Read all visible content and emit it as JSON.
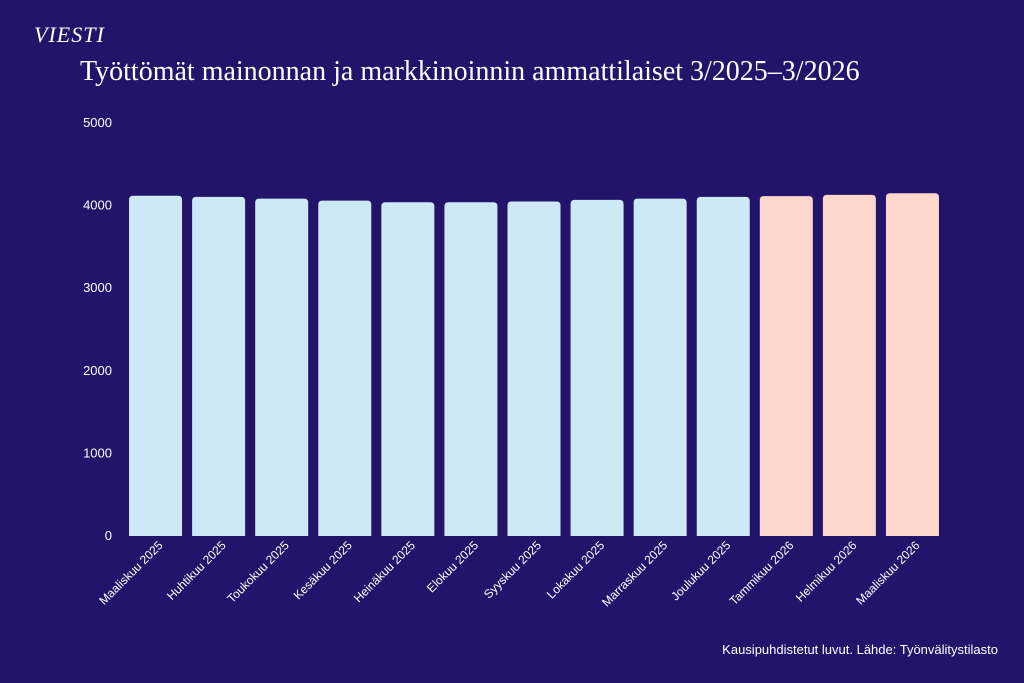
{
  "brand": {
    "logo_text": "VIESTI"
  },
  "chart_data": {
    "type": "bar",
    "title": "Työttömät mainonnan ja markkinoinnin ammattilaiset 3/2025–3/2026",
    "xlabel": "",
    "ylabel": "",
    "ylim": [
      0,
      5000
    ],
    "yticks": [
      "5000",
      "4000",
      "3000",
      "2000",
      "1000",
      "0"
    ],
    "grid": false,
    "categories": [
      "Maaliskuu 2025",
      "Huhtikuu 2025",
      "Toukokuu 2025",
      "Kesäkuu 2025",
      "Heinäkuu 2025",
      "Elokuu 2025",
      "Syyskuu 2025",
      "Lokakuu 2025",
      "Marraskuu 2025",
      "Joulukuu 2025",
      "Tammikuu 2026",
      "Helmikuu 2026",
      "Maaliskuu 2026"
    ],
    "values": [
      4120,
      4105,
      4085,
      4060,
      4040,
      4040,
      4050,
      4070,
      4085,
      4105,
      4115,
      4130,
      4150
    ],
    "colors": {
      "2025": "#cde9f5",
      "2026": "#fdd6cc"
    }
  },
  "footer": {
    "note": "Kausipuhdistetut luvut. Lähde: Työnvälitystilasto"
  }
}
